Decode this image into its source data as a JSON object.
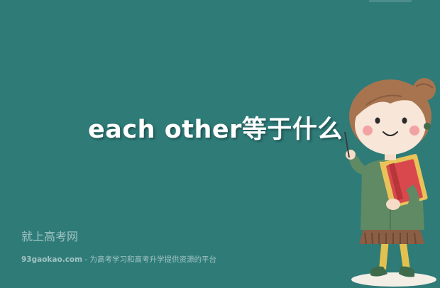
{
  "headline": "each other等于什么",
  "watermark": {
    "name": "就上高考网",
    "site": "93gaokao.com",
    "separator": " - ",
    "tagline": "为高考学习和高考升学提供资源的平台"
  },
  "mascot": {
    "icon": "teacher-girl-illustration"
  },
  "colors": {
    "background": "#2e7b78",
    "text": "#ffffff"
  }
}
